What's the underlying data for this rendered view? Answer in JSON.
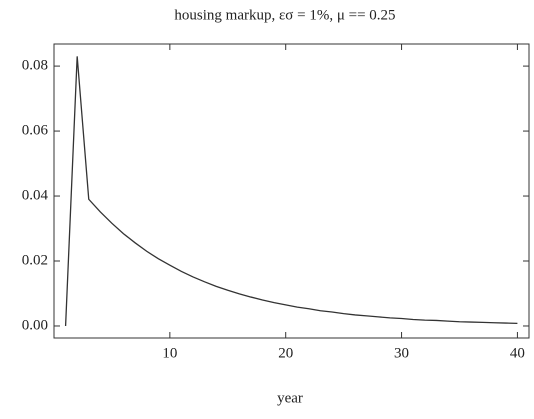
{
  "chart_data": {
    "type": "line",
    "title": "housing markup, εσ = 1%, μ == 0.25",
    "xlabel": "year",
    "x": [
      1,
      2,
      3,
      4,
      5,
      6,
      7,
      8,
      9,
      10,
      11,
      12,
      13,
      14,
      15,
      16,
      17,
      18,
      19,
      20,
      21,
      22,
      23,
      24,
      25,
      26,
      27,
      28,
      29,
      30,
      31,
      32,
      33,
      34,
      35,
      36,
      37,
      38,
      39,
      40
    ],
    "series": [
      {
        "color": "#333333",
        "values": [
          0,
          0.083,
          0.039,
          0.0351,
          0.0316,
          0.0284,
          0.0256,
          0.023,
          0.0207,
          0.0187,
          0.0168,
          0.0151,
          0.0136,
          0.0122,
          0.011,
          0.0099,
          0.0089,
          0.008,
          0.0072,
          0.0065,
          0.0058,
          0.0053,
          0.0047,
          0.0043,
          0.0038,
          0.0034,
          0.0031,
          0.0028,
          0.0025,
          0.0023,
          0.002,
          0.0018,
          0.0017,
          0.0015,
          0.0013,
          0.0012,
          0.0011,
          0.001,
          0.0009,
          0.0008
        ]
      }
    ],
    "xlim": [
      0,
      41
    ],
    "xticks": [
      10,
      20,
      30,
      40
    ],
    "ylim": [
      -0.0037,
      0.0868
    ],
    "yticks": [
      {
        "value": 0,
        "label": "0.00"
      },
      {
        "value": 0.02,
        "label": "0.02"
      },
      {
        "value": 0.04,
        "label": "0.04"
      },
      {
        "value": 0.06,
        "label": "0.06"
      },
      {
        "value": 0.08,
        "label": "0.08"
      }
    ]
  }
}
